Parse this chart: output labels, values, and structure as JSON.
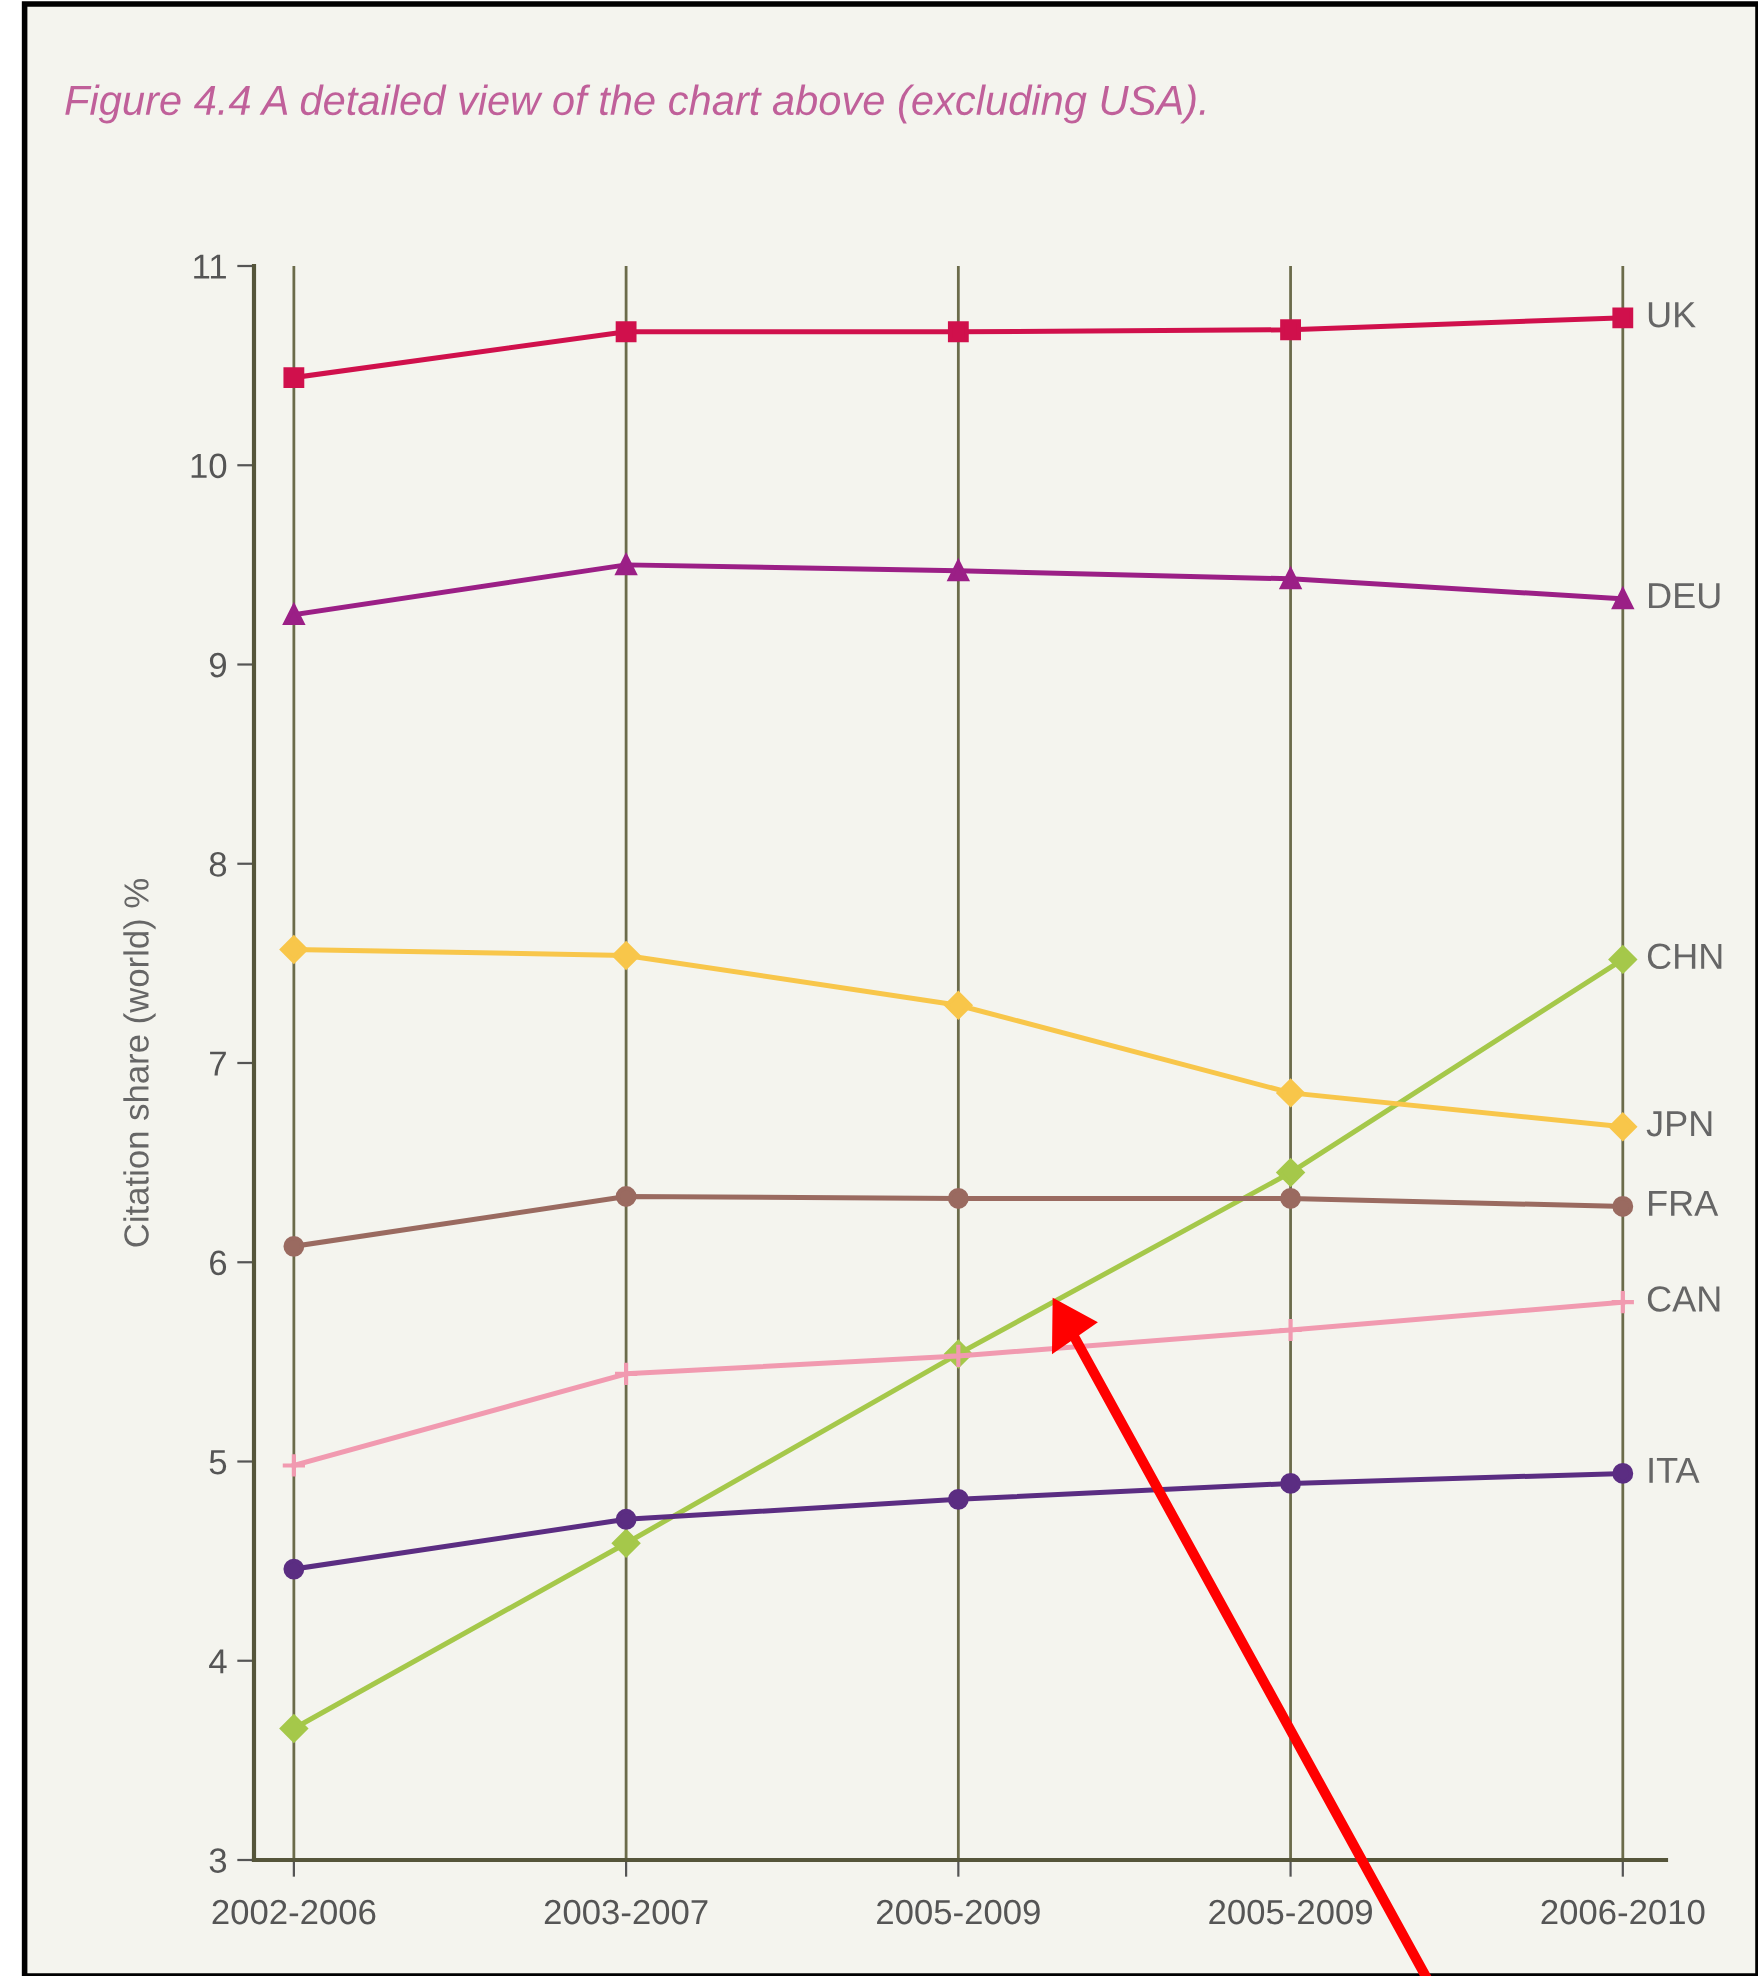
{
  "chart_data": {
    "type": "line",
    "title": "Figure 4.4 A detailed view of the chart above (excluding USA).",
    "ylabel": "Citation share (world) %",
    "categories": [
      "2002-2006",
      "2003-2007",
      "2005-2009",
      "2005-2009",
      "2006-2010"
    ],
    "series": [
      {
        "name": "UK",
        "color": "#d0104c",
        "marker": "square",
        "values": [
          10.44,
          10.67,
          10.67,
          10.68,
          10.74
        ]
      },
      {
        "name": "DEU",
        "color": "#9b1f86",
        "marker": "triangle",
        "values": [
          9.25,
          9.5,
          9.47,
          9.43,
          9.33
        ]
      },
      {
        "name": "CHN",
        "color": "#a5c84a",
        "marker": "diamond",
        "values": [
          3.66,
          4.59,
          5.54,
          6.45,
          7.52
        ]
      },
      {
        "name": "JPN",
        "color": "#f8c64a",
        "marker": "diamond",
        "values": [
          7.57,
          7.54,
          7.29,
          6.85,
          6.68
        ]
      },
      {
        "name": "FRA",
        "color": "#9a6a60",
        "marker": "circle",
        "values": [
          6.08,
          6.33,
          6.32,
          6.32,
          6.28
        ]
      },
      {
        "name": "CAN",
        "color": "#f19ab0",
        "marker": "cross",
        "values": [
          4.98,
          5.44,
          5.53,
          5.66,
          5.8
        ]
      },
      {
        "name": "ITA",
        "color": "#5b2d82",
        "marker": "circle",
        "values": [
          4.46,
          4.71,
          4.81,
          4.89,
          4.94
        ]
      }
    ],
    "ylim": [
      3,
      11
    ],
    "yticks": [
      3,
      4,
      5,
      6,
      7,
      8,
      9,
      10,
      11
    ],
    "grid": "x",
    "legend": false,
    "line_style": "solid"
  }
}
